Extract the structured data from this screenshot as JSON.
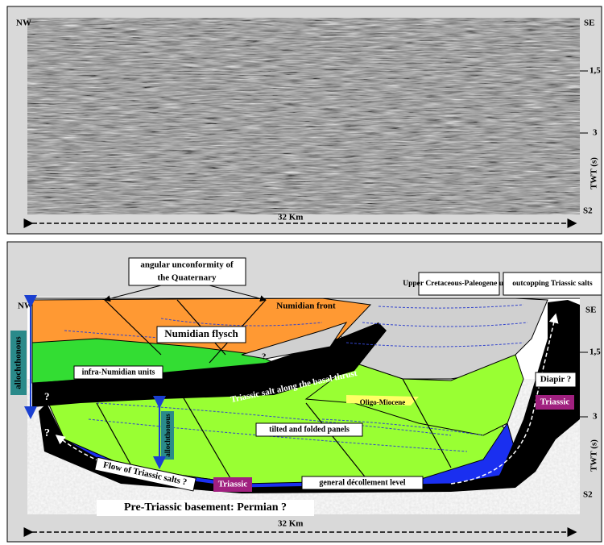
{
  "seismic_panel": {
    "left_label": "NW",
    "right_label": "SE",
    "ticks": [
      "1,5",
      "3"
    ],
    "axis_label": "TWT (s)",
    "section_label": "S2",
    "scale": "32 Km"
  },
  "interpretation_panel": {
    "left_label": "NW",
    "right_label": "SE",
    "ticks": [
      "1,5",
      "3"
    ],
    "axis_label": "TWT (s)",
    "section_label": "S2",
    "scale": "32 Km",
    "callouts": [
      "angular unconformity of the Quaternary",
      "Numidian front",
      "Upper Cretaceous-Paleogene units",
      "outcopping Triassic salts"
    ],
    "units": {
      "allochthonous_left": "allochthonous",
      "numidian_flysch": "Numidian flysch",
      "question_top": "?",
      "infra_numidian": "infra-Numidian units",
      "question_green": "?",
      "basal_thrust": "Triassic salt along the basal thrust",
      "oligo_miocene": "Oligo-Miocene",
      "allochthonous_middle": "allochthonous",
      "tilted_panels": "tilted and folded panels",
      "question_left": "?",
      "salt_flow": "Flow of Triassic salts ?",
      "triassic_bottom": "Triassic",
      "decollement": "general décollement level",
      "basement": "Pre-Triassic basement: Permian ?",
      "diapir": "Diapir ?",
      "triassic_right": "Triassic"
    }
  }
}
